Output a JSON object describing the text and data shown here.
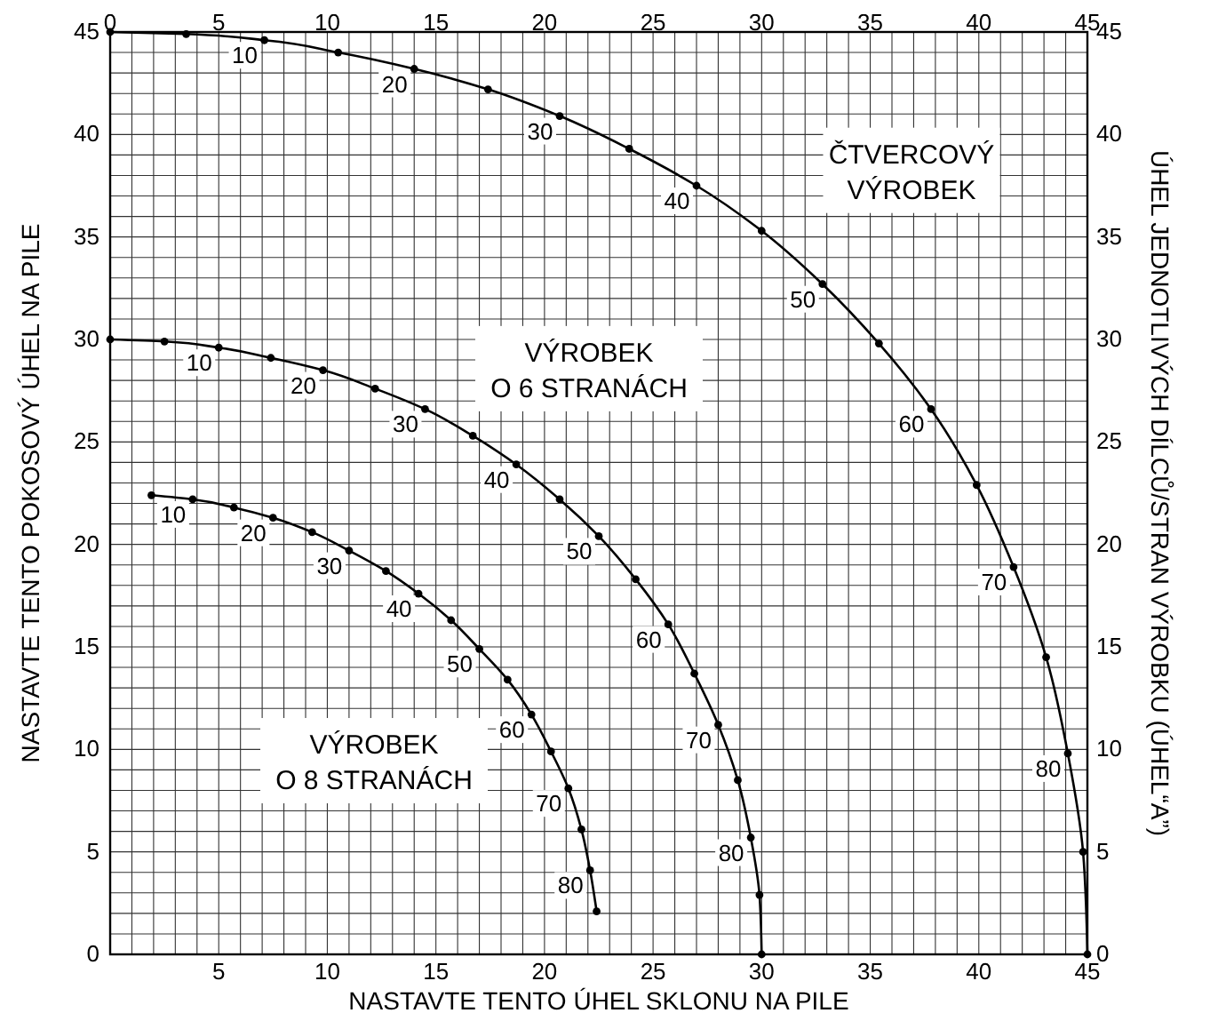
{
  "chart_data": {
    "type": "line",
    "xlabel": "NASTAVTE TENTO ÚHEL SKLONU NA PILE",
    "ylabel": "NASTAVTE TENTO POKOSOVÝ ÚHEL NA PILE",
    "y2label": "ÚHEL JEDNOTLIVÝCH DÍLCŮ/STRAN VÝROBKU (ÚHEL“A”)",
    "xlim": [
      0,
      45
    ],
    "ylim": [
      0,
      45
    ],
    "x2lim": [
      0,
      45
    ],
    "y2lim": [
      0,
      45
    ],
    "xticks": [
      {
        "value": 0,
        "label": null
      },
      {
        "value": 1,
        "label": null
      },
      {
        "value": 2,
        "label": null
      },
      {
        "value": 3,
        "label": null
      },
      {
        "value": 4,
        "label": null
      },
      5,
      {
        "value": 6,
        "label": null
      },
      {
        "value": 7,
        "label": null
      },
      {
        "value": 8,
        "label": null
      },
      {
        "value": 9,
        "label": null
      },
      10,
      {
        "value": 11,
        "label": null
      },
      {
        "value": 12,
        "label": null
      },
      {
        "value": 13,
        "label": null
      },
      {
        "value": 14,
        "label": null
      },
      15,
      {
        "value": 16,
        "label": null
      },
      {
        "value": 17,
        "label": null
      },
      {
        "value": 18,
        "label": null
      },
      {
        "value": 19,
        "label": null
      },
      20,
      {
        "value": 21,
        "label": null
      },
      {
        "value": 22,
        "label": null
      },
      {
        "value": 23,
        "label": null
      },
      {
        "value": 24,
        "label": null
      },
      25,
      {
        "value": 26,
        "label": null
      },
      {
        "value": 27,
        "label": null
      },
      {
        "value": 28,
        "label": null
      },
      {
        "value": 29,
        "label": null
      },
      30,
      {
        "value": 31,
        "label": null
      },
      {
        "value": 32,
        "label": null
      },
      {
        "value": 33,
        "label": null
      },
      {
        "value": 34,
        "label": null
      },
      35,
      {
        "value": 36,
        "label": null
      },
      {
        "value": 37,
        "label": null
      },
      {
        "value": 38,
        "label": null
      },
      {
        "value": 39,
        "label": null
      },
      40,
      {
        "value": 41,
        "label": null
      },
      {
        "value": 42,
        "label": null
      },
      {
        "value": 43,
        "label": null
      },
      {
        "value": 44,
        "label": null
      },
      45
    ],
    "yticks": [
      0,
      {
        "value": 1,
        "label": null
      },
      {
        "value": 2,
        "label": null
      },
      {
        "value": 3,
        "label": null
      },
      {
        "value": 4,
        "label": null
      },
      5,
      {
        "value": 6,
        "label": null
      },
      {
        "value": 7,
        "label": null
      },
      {
        "value": 8,
        "label": null
      },
      {
        "value": 9,
        "label": null
      },
      10,
      {
        "value": 11,
        "label": null
      },
      {
        "value": 12,
        "label": null
      },
      {
        "value": 13,
        "label": null
      },
      {
        "value": 14,
        "label": null
      },
      15,
      {
        "value": 16,
        "label": null
      },
      {
        "value": 17,
        "label": null
      },
      {
        "value": 18,
        "label": null
      },
      {
        "value": 19,
        "label": null
      },
      20,
      {
        "value": 21,
        "label": null
      },
      {
        "value": 22,
        "label": null
      },
      {
        "value": 23,
        "label": null
      },
      {
        "value": 24,
        "label": null
      },
      25,
      {
        "value": 26,
        "label": null
      },
      {
        "value": 27,
        "label": null
      },
      {
        "value": 28,
        "label": null
      },
      {
        "value": 29,
        "label": null
      },
      30,
      {
        "value": 31,
        "label": null
      },
      {
        "value": 32,
        "label": null
      },
      {
        "value": 33,
        "label": null
      },
      {
        "value": 34,
        "label": null
      },
      35,
      {
        "value": 36,
        "label": null
      },
      {
        "value": 37,
        "label": null
      },
      {
        "value": 38,
        "label": null
      },
      {
        "value": 39,
        "label": null
      },
      40,
      {
        "value": 41,
        "label": null
      },
      {
        "value": 42,
        "label": null
      },
      {
        "value": 43,
        "label": null
      },
      {
        "value": 44,
        "label": null
      },
      45
    ],
    "x2ticks": [
      0,
      5,
      10,
      15,
      20,
      25,
      30,
      35,
      40,
      45
    ],
    "y2ticks": [
      0,
      5,
      10,
      15,
      20,
      25,
      30,
      35,
      40,
      45
    ],
    "grid": true,
    "marker": "circle",
    "line_style": "solid",
    "series": [
      {
        "name": "ČTVERCOVÝ VÝROBEK",
        "color": "#000000",
        "x": [
          0,
          3.5,
          7.1,
          10.5,
          14.0,
          17.4,
          20.7,
          23.9,
          27.0,
          30.0,
          32.8,
          35.4,
          37.8,
          39.9,
          41.6,
          43.1,
          44.1,
          44.8,
          45
        ],
        "values": [
          45,
          44.9,
          44.6,
          44.0,
          43.2,
          42.2,
          40.9,
          39.3,
          37.5,
          35.3,
          32.7,
          29.8,
          26.6,
          22.9,
          18.9,
          14.5,
          9.8,
          5.0,
          0
        ]
      },
      {
        "name": "VÝROBEK O 6 STRANÁCH",
        "color": "#000000",
        "x": [
          0,
          2.5,
          5.0,
          7.4,
          9.8,
          12.2,
          14.5,
          16.7,
          18.7,
          20.7,
          22.5,
          24.2,
          25.7,
          26.9,
          28.0,
          28.9,
          29.5,
          29.9,
          30
        ],
        "values": [
          30.0,
          29.9,
          29.6,
          29.1,
          28.5,
          27.6,
          26.6,
          25.3,
          23.9,
          22.2,
          20.4,
          18.3,
          16.1,
          13.7,
          11.2,
          8.5,
          5.7,
          2.9,
          0
        ]
      },
      {
        "name": "VÝROBEK O 8 STRANÁCH",
        "color": "#000000",
        "x": [
          1.9,
          3.8,
          5.7,
          7.5,
          9.3,
          11.0,
          12.7,
          14.2,
          15.7,
          17.0,
          18.3,
          19.4,
          20.3,
          21.1,
          21.7,
          22.1,
          22.4
        ],
        "values": [
          22.4,
          22.2,
          21.8,
          21.3,
          20.6,
          19.7,
          18.7,
          17.6,
          16.3,
          14.9,
          13.4,
          11.7,
          9.9,
          8.1,
          6.1,
          4.1,
          2.1
        ]
      }
    ],
    "annotations": [
      {
        "text": "10",
        "x": 7.1,
        "y": 44.6
      },
      {
        "text": "20",
        "x": 14.0,
        "y": 43.2
      },
      {
        "text": "30",
        "x": 20.7,
        "y": 40.9
      },
      {
        "text": "40",
        "x": 27.0,
        "y": 37.5
      },
      {
        "text": "50",
        "x": 32.8,
        "y": 32.7
      },
      {
        "text": "60",
        "x": 37.8,
        "y": 26.6
      },
      {
        "text": "70",
        "x": 41.6,
        "y": 18.9
      },
      {
        "text": "80",
        "x": 44.1,
        "y": 9.8
      },
      {
        "text": "10",
        "x": 5.0,
        "y": 29.6
      },
      {
        "text": "20",
        "x": 9.8,
        "y": 28.5
      },
      {
        "text": "30",
        "x": 14.5,
        "y": 26.6
      },
      {
        "text": "40",
        "x": 18.7,
        "y": 23.9
      },
      {
        "text": "50",
        "x": 22.5,
        "y": 20.4
      },
      {
        "text": "60",
        "x": 25.7,
        "y": 16.1
      },
      {
        "text": "70",
        "x": 28.0,
        "y": 11.2
      },
      {
        "text": "80",
        "x": 29.5,
        "y": 5.7
      },
      {
        "text": "10",
        "x": 3.8,
        "y": 22.2
      },
      {
        "text": "20",
        "x": 7.5,
        "y": 21.3
      },
      {
        "text": "30",
        "x": 11.0,
        "y": 19.7
      },
      {
        "text": "40",
        "x": 14.2,
        "y": 17.6
      },
      {
        "text": "50",
        "x": 17.0,
        "y": 14.9
      },
      {
        "text": "60",
        "x": 19.4,
        "y": 11.7
      },
      {
        "text": "70",
        "x": 21.1,
        "y": 8.1
      },
      {
        "text": "80",
        "x": 22.1,
        "y": 4.1
      }
    ]
  }
}
